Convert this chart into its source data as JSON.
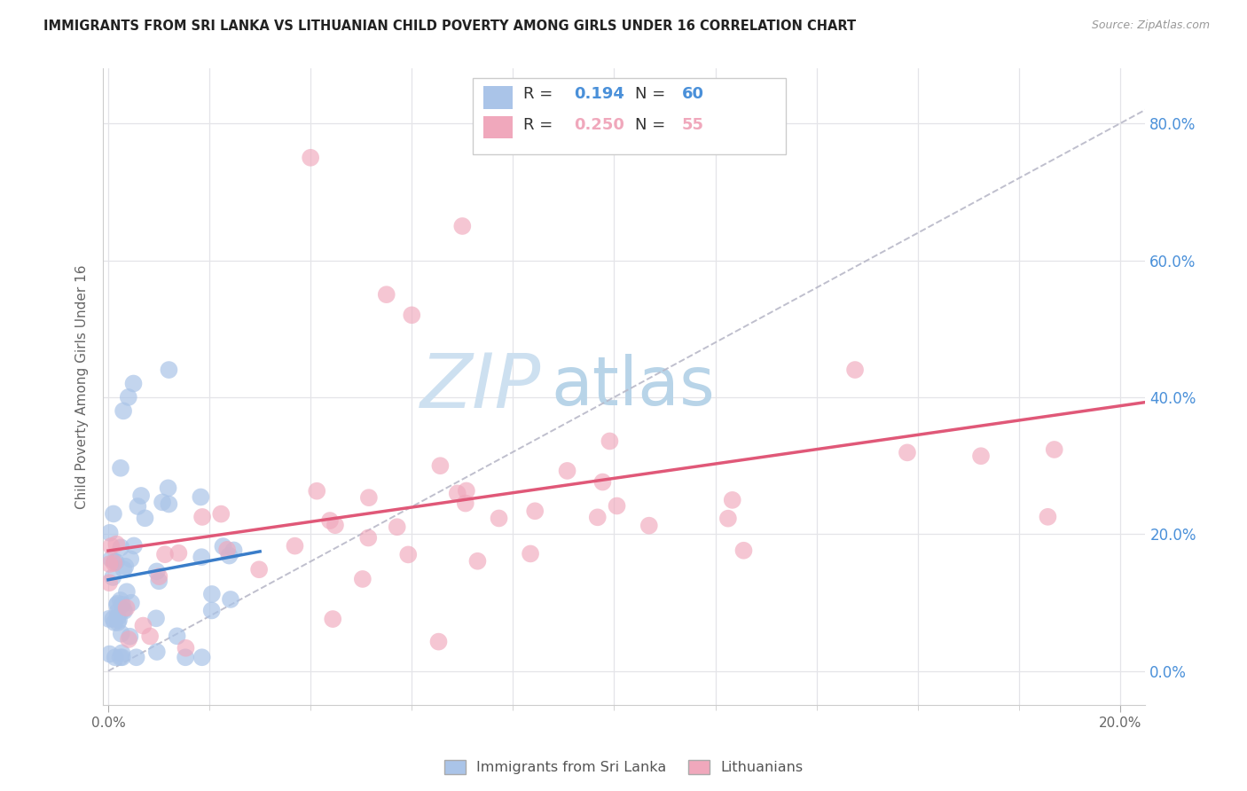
{
  "title": "IMMIGRANTS FROM SRI LANKA VS LITHUANIAN CHILD POVERTY AMONG GIRLS UNDER 16 CORRELATION CHART",
  "source": "Source: ZipAtlas.com",
  "ylabel": "Child Poverty Among Girls Under 16",
  "xlim": [
    -0.001,
    0.205
  ],
  "ylim": [
    -0.05,
    0.88
  ],
  "xtick_major": [
    0.0,
    0.2
  ],
  "ytick_major": [
    0.0,
    0.2,
    0.4,
    0.6,
    0.8
  ],
  "series1_color": "#aac4e8",
  "series2_color": "#f0a8bc",
  "line1_color": "#3a7dc9",
  "line2_color": "#e05878",
  "diag_color": "#b8b8c8",
  "R1": 0.194,
  "N1": 60,
  "R2": 0.25,
  "N2": 55,
  "watermark_zip": "ZIP",
  "watermark_atlas": "atlas",
  "watermark_color_zip": "#ccddf0",
  "watermark_color_atlas": "#c8dce8",
  "background_color": "#ffffff",
  "grid_color": "#e4e4e8",
  "tick_color": "#4a90d9",
  "label_color": "#666666"
}
